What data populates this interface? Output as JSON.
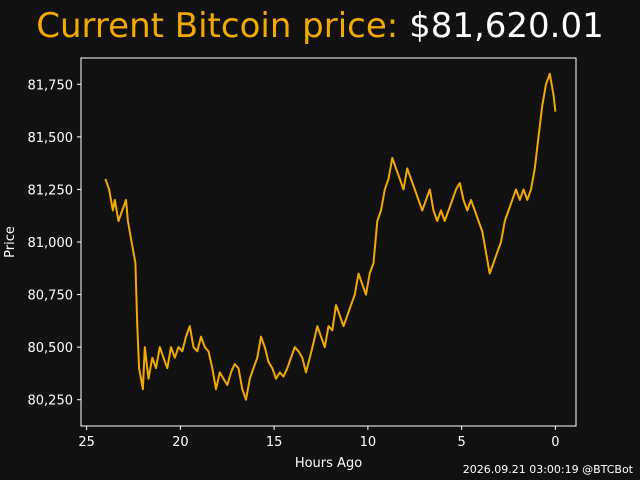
{
  "header": {
    "label": "Current Bitcoin price:",
    "value": "$81,620.01"
  },
  "footer": {
    "timestamp": "2026.09.21 03:00:19 @BTCBot"
  },
  "colors": {
    "background": "#111111",
    "line": "#f2a900",
    "axes": "#ffffff",
    "text": "#ffffff"
  },
  "chart_data": {
    "type": "line",
    "title": "",
    "xlabel": "Hours Ago",
    "ylabel": "Price",
    "xlim": [
      25.3,
      -1.1
    ],
    "ylim": [
      80125,
      81875
    ],
    "x_reversed": true,
    "grid": false,
    "xticks": [
      25,
      20,
      15,
      10,
      5,
      0
    ],
    "xtick_labels": [
      "25",
      "20",
      "15",
      "10",
      "5",
      "0"
    ],
    "yticks": [
      80250,
      80500,
      80750,
      81000,
      81250,
      81500,
      81750
    ],
    "ytick_labels": [
      "80,250",
      "80,500",
      "80,750",
      "81,000",
      "81,250",
      "81,500",
      "81,750"
    ],
    "series": [
      {
        "color": "#f2a900",
        "points": [
          [
            24.0,
            81300
          ],
          [
            23.8,
            81250
          ],
          [
            23.6,
            81150
          ],
          [
            23.5,
            81200
          ],
          [
            23.3,
            81100
          ],
          [
            23.1,
            81150
          ],
          [
            22.9,
            81200
          ],
          [
            22.8,
            81100
          ],
          [
            22.6,
            81000
          ],
          [
            22.4,
            80900
          ],
          [
            22.3,
            80600
          ],
          [
            22.2,
            80400
          ],
          [
            22.0,
            80300
          ],
          [
            21.9,
            80500
          ],
          [
            21.7,
            80350
          ],
          [
            21.5,
            80450
          ],
          [
            21.3,
            80400
          ],
          [
            21.1,
            80500
          ],
          [
            20.9,
            80450
          ],
          [
            20.7,
            80400
          ],
          [
            20.5,
            80500
          ],
          [
            20.3,
            80450
          ],
          [
            20.1,
            80500
          ],
          [
            19.9,
            80480
          ],
          [
            19.7,
            80550
          ],
          [
            19.5,
            80600
          ],
          [
            19.3,
            80500
          ],
          [
            19.1,
            80480
          ],
          [
            18.9,
            80550
          ],
          [
            18.7,
            80500
          ],
          [
            18.5,
            80480
          ],
          [
            18.3,
            80400
          ],
          [
            18.1,
            80300
          ],
          [
            17.9,
            80380
          ],
          [
            17.7,
            80350
          ],
          [
            17.5,
            80320
          ],
          [
            17.3,
            80380
          ],
          [
            17.1,
            80420
          ],
          [
            16.9,
            80400
          ],
          [
            16.7,
            80300
          ],
          [
            16.5,
            80250
          ],
          [
            16.3,
            80350
          ],
          [
            16.1,
            80400
          ],
          [
            15.9,
            80450
          ],
          [
            15.7,
            80550
          ],
          [
            15.5,
            80500
          ],
          [
            15.3,
            80430
          ],
          [
            15.1,
            80400
          ],
          [
            14.9,
            80350
          ],
          [
            14.7,
            80380
          ],
          [
            14.5,
            80360
          ],
          [
            14.3,
            80400
          ],
          [
            14.1,
            80450
          ],
          [
            13.9,
            80500
          ],
          [
            13.7,
            80480
          ],
          [
            13.5,
            80450
          ],
          [
            13.3,
            80380
          ],
          [
            13.1,
            80450
          ],
          [
            12.9,
            80520
          ],
          [
            12.7,
            80600
          ],
          [
            12.5,
            80550
          ],
          [
            12.3,
            80500
          ],
          [
            12.1,
            80600
          ],
          [
            11.9,
            80580
          ],
          [
            11.7,
            80700
          ],
          [
            11.5,
            80650
          ],
          [
            11.3,
            80600
          ],
          [
            11.1,
            80650
          ],
          [
            10.9,
            80700
          ],
          [
            10.7,
            80750
          ],
          [
            10.5,
            80850
          ],
          [
            10.3,
            80800
          ],
          [
            10.1,
            80750
          ],
          [
            9.9,
            80850
          ],
          [
            9.7,
            80900
          ],
          [
            9.5,
            81100
          ],
          [
            9.3,
            81150
          ],
          [
            9.1,
            81250
          ],
          [
            8.9,
            81300
          ],
          [
            8.7,
            81400
          ],
          [
            8.5,
            81350
          ],
          [
            8.3,
            81300
          ],
          [
            8.1,
            81250
          ],
          [
            7.9,
            81350
          ],
          [
            7.7,
            81300
          ],
          [
            7.5,
            81250
          ],
          [
            7.3,
            81200
          ],
          [
            7.1,
            81150
          ],
          [
            6.9,
            81200
          ],
          [
            6.7,
            81250
          ],
          [
            6.5,
            81150
          ],
          [
            6.3,
            81100
          ],
          [
            6.1,
            81150
          ],
          [
            5.9,
            81100
          ],
          [
            5.7,
            81150
          ],
          [
            5.5,
            81200
          ],
          [
            5.3,
            81250
          ],
          [
            5.1,
            81280
          ],
          [
            4.9,
            81200
          ],
          [
            4.7,
            81150
          ],
          [
            4.5,
            81200
          ],
          [
            4.3,
            81150
          ],
          [
            4.1,
            81100
          ],
          [
            3.9,
            81050
          ],
          [
            3.7,
            80950
          ],
          [
            3.5,
            80850
          ],
          [
            3.3,
            80900
          ],
          [
            3.1,
            80950
          ],
          [
            2.9,
            81000
          ],
          [
            2.7,
            81100
          ],
          [
            2.5,
            81150
          ],
          [
            2.3,
            81200
          ],
          [
            2.1,
            81250
          ],
          [
            1.9,
            81200
          ],
          [
            1.7,
            81250
          ],
          [
            1.5,
            81200
          ],
          [
            1.3,
            81250
          ],
          [
            1.1,
            81350
          ],
          [
            0.9,
            81500
          ],
          [
            0.7,
            81650
          ],
          [
            0.5,
            81750
          ],
          [
            0.3,
            81800
          ],
          [
            0.1,
            81700
          ],
          [
            0.0,
            81620
          ]
        ]
      }
    ]
  }
}
